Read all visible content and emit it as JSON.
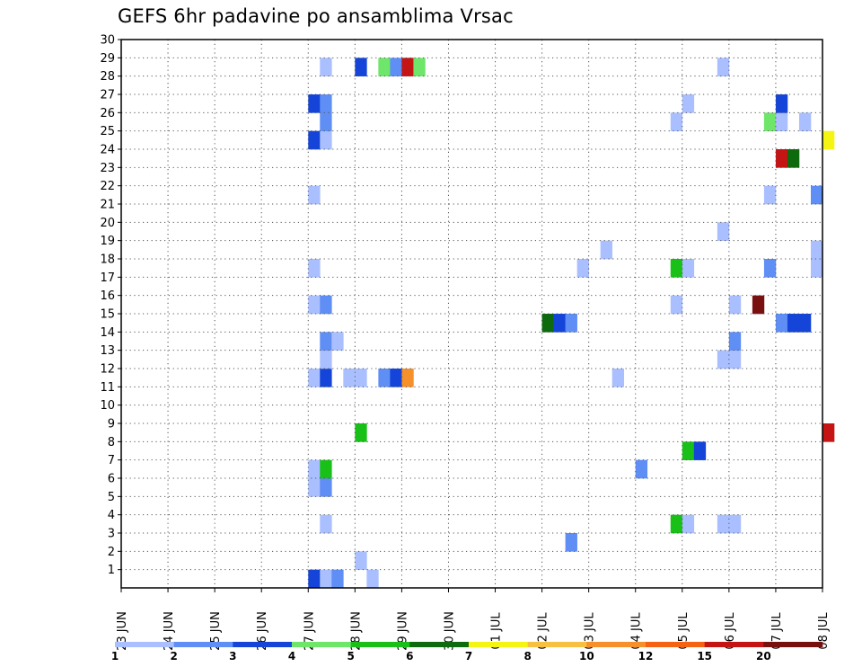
{
  "chart_data": {
    "type": "heatmap",
    "title": "GEFS 6hr padavine po ansamblima Vrsac",
    "xlabel": "",
    "ylabel": "",
    "x_tick_labels": [
      "23 JUN",
      "24 JUN",
      "25 JUN",
      "26 JUN",
      "27 JUN",
      "28 JUN",
      "29 JUN",
      "30 JUN",
      "01 JUL",
      "02 JUL",
      "03 JUL",
      "04 JUL",
      "05 JUL",
      "06 JUL",
      "07 JUL",
      "08 JUL"
    ],
    "y_tick_labels": [
      "1",
      "2",
      "3",
      "4",
      "5",
      "6",
      "7",
      "8",
      "9",
      "10",
      "11",
      "12",
      "13",
      "14",
      "15",
      "16",
      "17",
      "18",
      "19",
      "20",
      "21",
      "22",
      "23",
      "24",
      "25",
      "26",
      "27",
      "28",
      "29",
      "30"
    ],
    "xlim_days": [
      0,
      15
    ],
    "ylim": [
      0,
      30
    ],
    "grid": true,
    "colorbar": {
      "labels": [
        "1",
        "2",
        "3",
        "4",
        "5",
        "6",
        "7",
        "8",
        "10",
        "12",
        "15",
        "20"
      ],
      "colors": [
        "#aabfff",
        "#5f8ef5",
        "#1545d8",
        "#6ee66a",
        "#18c018",
        "#0d6a0d",
        "#f5f514",
        "#f7c040",
        "#f5902a",
        "#f56214",
        "#c41414",
        "#781010"
      ]
    },
    "cells": [
      {
        "member": 0,
        "x": 4,
        "c": 2
      },
      {
        "member": 0,
        "x": 4.25,
        "c": 0
      },
      {
        "member": 0,
        "x": 4.5,
        "c": 1
      },
      {
        "member": 0,
        "x": 5.25,
        "c": 0
      },
      {
        "member": 1,
        "x": 5,
        "c": 0
      },
      {
        "member": 2,
        "x": 9.5,
        "c": 1
      },
      {
        "member": 3,
        "x": 4.25,
        "c": 0
      },
      {
        "member": 3,
        "x": 11.75,
        "c": 4
      },
      {
        "member": 3,
        "x": 12,
        "c": 0
      },
      {
        "member": 3,
        "x": 12.75,
        "c": 0
      },
      {
        "member": 3,
        "x": 13,
        "c": 0
      },
      {
        "member": 5,
        "x": 4,
        "c": 0
      },
      {
        "member": 5,
        "x": 4.25,
        "c": 1
      },
      {
        "member": 6,
        "x": 4,
        "c": 0
      },
      {
        "member": 6,
        "x": 4.25,
        "c": 4
      },
      {
        "member": 6,
        "x": 11,
        "c": 1
      },
      {
        "member": 7,
        "x": 12,
        "c": 4
      },
      {
        "member": 7,
        "x": 12.25,
        "c": 2
      },
      {
        "member": 8,
        "x": 5,
        "c": 4
      },
      {
        "member": 8,
        "x": 15,
        "c": 10
      },
      {
        "member": 11,
        "x": 4,
        "c": 0
      },
      {
        "member": 11,
        "x": 4.25,
        "c": 2
      },
      {
        "member": 11,
        "x": 4.75,
        "c": 0
      },
      {
        "member": 11,
        "x": 5,
        "c": 0
      },
      {
        "member": 11,
        "x": 5.5,
        "c": 1
      },
      {
        "member": 11,
        "x": 5.75,
        "c": 2
      },
      {
        "member": 11,
        "x": 6,
        "c": 8
      },
      {
        "member": 11,
        "x": 10.5,
        "c": 0
      },
      {
        "member": 12,
        "x": 4.25,
        "c": 0
      },
      {
        "member": 12,
        "x": 12.75,
        "c": 0
      },
      {
        "member": 12,
        "x": 13,
        "c": 0
      },
      {
        "member": 13,
        "x": 4.25,
        "c": 1
      },
      {
        "member": 13,
        "x": 4.5,
        "c": 0
      },
      {
        "member": 13,
        "x": 13,
        "c": 1
      },
      {
        "member": 14,
        "x": 9,
        "c": 5
      },
      {
        "member": 14,
        "x": 9.25,
        "c": 2
      },
      {
        "member": 14,
        "x": 9.5,
        "c": 1
      },
      {
        "member": 14,
        "x": 14,
        "c": 1
      },
      {
        "member": 14,
        "x": 14.25,
        "c": 2
      },
      {
        "member": 14,
        "x": 14.5,
        "c": 2
      },
      {
        "member": 15,
        "x": 4,
        "c": 0
      },
      {
        "member": 15,
        "x": 4.25,
        "c": 1
      },
      {
        "member": 15,
        "x": 11.75,
        "c": 0
      },
      {
        "member": 15,
        "x": 13,
        "c": 0
      },
      {
        "member": 15,
        "x": 13.5,
        "c": 11
      },
      {
        "member": 17,
        "x": 4,
        "c": 0
      },
      {
        "member": 17,
        "x": 9.75,
        "c": 0
      },
      {
        "member": 17,
        "x": 11.75,
        "c": 4
      },
      {
        "member": 17,
        "x": 12,
        "c": 0
      },
      {
        "member": 17,
        "x": 13.75,
        "c": 1
      },
      {
        "member": 17,
        "x": 14.75,
        "c": 0
      },
      {
        "member": 18,
        "x": 10.25,
        "c": 0
      },
      {
        "member": 18,
        "x": 14.75,
        "c": 0
      },
      {
        "member": 19,
        "x": 12.75,
        "c": 0
      },
      {
        "member": 21,
        "x": 4,
        "c": 0
      },
      {
        "member": 21,
        "x": 13.75,
        "c": 0
      },
      {
        "member": 21,
        "x": 14.75,
        "c": 1
      },
      {
        "member": 23,
        "x": 14,
        "c": 10
      },
      {
        "member": 23,
        "x": 14.25,
        "c": 5
      },
      {
        "member": 24,
        "x": 4,
        "c": 2
      },
      {
        "member": 24,
        "x": 4.25,
        "c": 0
      },
      {
        "member": 24,
        "x": 15,
        "c": 6
      },
      {
        "member": 25,
        "x": 4.25,
        "c": 1
      },
      {
        "member": 25,
        "x": 11.75,
        "c": 0
      },
      {
        "member": 25,
        "x": 13.75,
        "c": 3
      },
      {
        "member": 25,
        "x": 14,
        "c": 0
      },
      {
        "member": 25,
        "x": 14.5,
        "c": 0
      },
      {
        "member": 26,
        "x": 4,
        "c": 2
      },
      {
        "member": 26,
        "x": 4.25,
        "c": 1
      },
      {
        "member": 26,
        "x": 12,
        "c": 0
      },
      {
        "member": 26,
        "x": 14,
        "c": 2
      },
      {
        "member": 28,
        "x": 4.25,
        "c": 0
      },
      {
        "member": 28,
        "x": 5,
        "c": 2
      },
      {
        "member": 28,
        "x": 5.5,
        "c": 3
      },
      {
        "member": 28,
        "x": 5.75,
        "c": 1
      },
      {
        "member": 28,
        "x": 6,
        "c": 10
      },
      {
        "member": 28,
        "x": 6.25,
        "c": 3
      },
      {
        "member": 28,
        "x": 12.75,
        "c": 0
      }
    ]
  }
}
